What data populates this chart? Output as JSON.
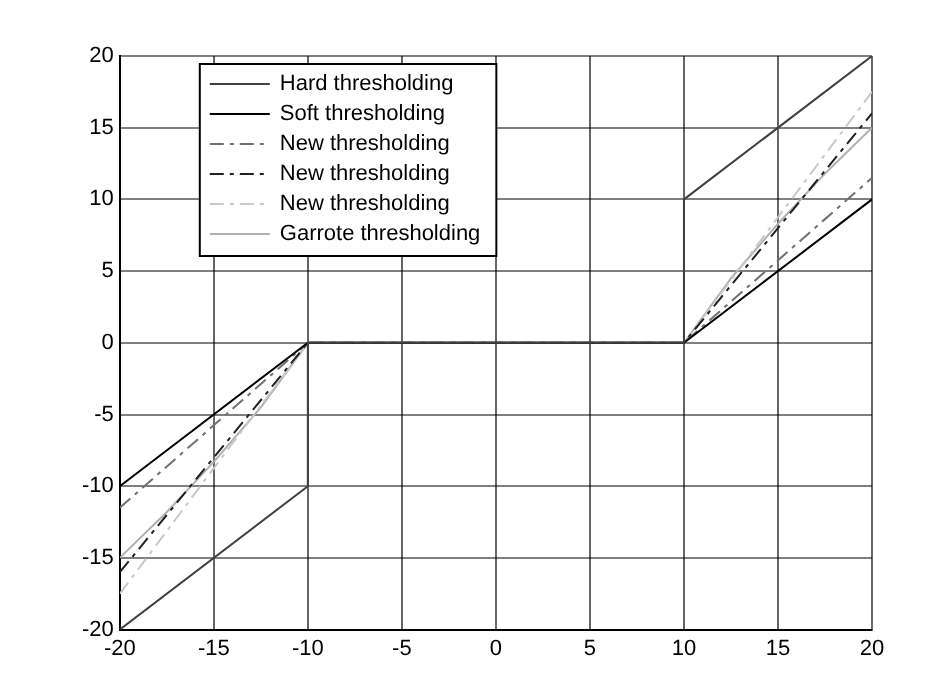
{
  "chart_data": {
    "type": "line",
    "xlim": [
      -20,
      20
    ],
    "ylim": [
      -20,
      20
    ],
    "xticks": [
      -20,
      -15,
      -10,
      -5,
      0,
      5,
      10,
      15,
      20
    ],
    "yticks": [
      -20,
      -15,
      -10,
      -5,
      0,
      5,
      10,
      15,
      20
    ],
    "grid": true,
    "legend": "top left",
    "marker": "none",
    "series": [
      {
        "name": "Hard thresholding",
        "color": "#404040",
        "line_style": "solid",
        "x": [
          -20,
          -10,
          -10,
          10,
          10,
          20
        ],
        "values": [
          -20,
          -10,
          0,
          0,
          10,
          20
        ]
      },
      {
        "name": "Soft thresholding",
        "color": "#000000",
        "line_style": "solid",
        "x": [
          -20,
          -10,
          10,
          20
        ],
        "values": [
          -10,
          0,
          0,
          10
        ]
      },
      {
        "name": "New thresholding",
        "color": "#707070",
        "line_style": "dashed",
        "x": [
          -20,
          -10,
          10,
          20
        ],
        "values": [
          -11.5,
          0,
          0,
          11.5
        ]
      },
      {
        "name": "New thresholding",
        "color": "#202020",
        "line_style": "dashed",
        "x": [
          -20,
          -10,
          10,
          20
        ],
        "values": [
          -16,
          0,
          0,
          16
        ]
      },
      {
        "name": "New thresholding",
        "color": "#c8c8c8",
        "line_style": "dashed",
        "x": [
          -20,
          -10,
          10,
          20
        ],
        "values": [
          -17.5,
          0,
          0,
          17.5
        ]
      },
      {
        "name": "Garrote thresholding",
        "color": "#b0b0b0",
        "line_style": "solid",
        "x": [
          -20,
          -17.5,
          -15,
          -12.5,
          -10,
          10,
          12.5,
          15,
          17.5,
          20
        ],
        "values": [
          -15,
          -11.8,
          -8.3,
          -4.5,
          0,
          0,
          4.5,
          8.3,
          11.8,
          15
        ]
      }
    ]
  }
}
